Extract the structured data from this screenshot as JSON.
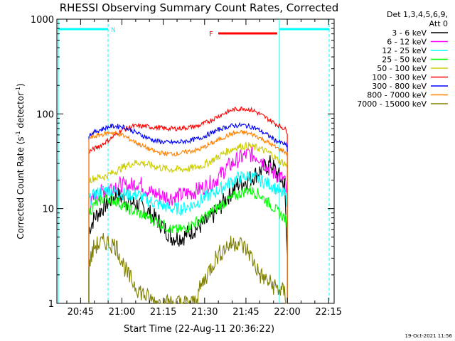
{
  "chart_data": {
    "type": "line",
    "title": "RHESSI Observing Summary Count Rates, Corrected",
    "xlabel": "Start Time (22-Aug-11 20:36:22)",
    "ylabel": "Corrected Count Rate (s",
    "ylabel_sup1": "-1",
    "ylabel_mid": " detector",
    "ylabel_sup2": "-1",
    "ylabel_end": ")",
    "yscale": "log",
    "ylim": [
      1,
      1000
    ],
    "xlim_minutes": [
      36.4,
      137
    ],
    "xticks": [
      {
        "label": "20:45",
        "minute": 45
      },
      {
        "label": "21:00",
        "minute": 60
      },
      {
        "label": "21:15",
        "minute": 75
      },
      {
        "label": "21:30",
        "minute": 90
      },
      {
        "label": "21:45",
        "minute": 105
      },
      {
        "label": "22:00",
        "minute": 120
      },
      {
        "label": "22:15",
        "minute": 135
      }
    ],
    "yticks": [
      {
        "label": "1",
        "value": 1
      },
      {
        "label": "10",
        "value": 10
      },
      {
        "label": "100",
        "value": 100
      },
      {
        "label": "1000",
        "value": 1000
      }
    ],
    "legend_header": [
      "Det 1,3,4,5,6,9,",
      "Att 0"
    ],
    "series": [
      {
        "name": "3 - 6 keV",
        "color": "#000000",
        "points": [
          [
            48,
            6
          ],
          [
            50,
            8
          ],
          [
            54,
            11
          ],
          [
            58,
            14
          ],
          [
            62,
            12
          ],
          [
            66,
            11
          ],
          [
            70,
            9
          ],
          [
            74,
            7
          ],
          [
            78,
            5
          ],
          [
            82,
            5
          ],
          [
            86,
            6
          ],
          [
            90,
            7
          ],
          [
            94,
            9
          ],
          [
            98,
            13
          ],
          [
            102,
            18
          ],
          [
            106,
            20
          ],
          [
            110,
            25
          ],
          [
            114,
            30
          ],
          [
            117,
            22
          ],
          [
            119,
            18
          ],
          [
            120,
            3
          ]
        ]
      },
      {
        "name": "6 - 12 keV",
        "color": "#ff00ff",
        "points": [
          [
            48,
            10
          ],
          [
            50,
            13
          ],
          [
            54,
            16
          ],
          [
            58,
            18
          ],
          [
            62,
            17
          ],
          [
            66,
            19
          ],
          [
            70,
            15
          ],
          [
            74,
            14
          ],
          [
            78,
            13
          ],
          [
            82,
            14
          ],
          [
            86,
            15
          ],
          [
            90,
            17
          ],
          [
            94,
            20
          ],
          [
            98,
            27
          ],
          [
            102,
            33
          ],
          [
            106,
            38
          ],
          [
            110,
            35
          ],
          [
            114,
            25
          ],
          [
            117,
            22
          ],
          [
            119,
            20
          ],
          [
            120,
            14
          ]
        ]
      },
      {
        "name": "12 - 25 keV",
        "color": "#00ffff",
        "points": [
          [
            48,
            12
          ],
          [
            50,
            14
          ],
          [
            54,
            16
          ],
          [
            58,
            15
          ],
          [
            62,
            14
          ],
          [
            66,
            14
          ],
          [
            70,
            12
          ],
          [
            74,
            11
          ],
          [
            78,
            10
          ],
          [
            82,
            10
          ],
          [
            86,
            11
          ],
          [
            90,
            13
          ],
          [
            94,
            15
          ],
          [
            98,
            18
          ],
          [
            102,
            21
          ],
          [
            106,
            22
          ],
          [
            110,
            20
          ],
          [
            114,
            18
          ],
          [
            117,
            15
          ],
          [
            119,
            14
          ],
          [
            120,
            12
          ]
        ]
      },
      {
        "name": "25 - 50 keV",
        "color": "#00ff00",
        "points": [
          [
            48,
            9
          ],
          [
            50,
            11
          ],
          [
            54,
            13
          ],
          [
            58,
            12
          ],
          [
            62,
            10
          ],
          [
            66,
            9
          ],
          [
            70,
            8
          ],
          [
            74,
            7
          ],
          [
            78,
            6
          ],
          [
            82,
            6
          ],
          [
            86,
            7
          ],
          [
            90,
            8
          ],
          [
            94,
            10
          ],
          [
            98,
            12
          ],
          [
            102,
            14
          ],
          [
            106,
            16
          ],
          [
            110,
            14
          ],
          [
            114,
            11
          ],
          [
            117,
            9
          ],
          [
            119,
            8
          ],
          [
            120,
            7
          ]
        ]
      },
      {
        "name": "50 - 100 keV",
        "color": "#cccc00",
        "points": [
          [
            48,
            20
          ],
          [
            50,
            21
          ],
          [
            54,
            22
          ],
          [
            58,
            25
          ],
          [
            62,
            29
          ],
          [
            66,
            31
          ],
          [
            70,
            29
          ],
          [
            74,
            27
          ],
          [
            78,
            26
          ],
          [
            82,
            26
          ],
          [
            86,
            27
          ],
          [
            90,
            29
          ],
          [
            94,
            34
          ],
          [
            98,
            40
          ],
          [
            102,
            45
          ],
          [
            106,
            46
          ],
          [
            110,
            43
          ],
          [
            114,
            38
          ],
          [
            117,
            32
          ],
          [
            119,
            30
          ],
          [
            120,
            28
          ]
        ]
      },
      {
        "name": "100 - 300 keV",
        "color": "#ff0000",
        "points": [
          [
            48,
            40
          ],
          [
            52,
            46
          ],
          [
            56,
            55
          ],
          [
            60,
            68
          ],
          [
            64,
            74
          ],
          [
            68,
            74
          ],
          [
            72,
            72
          ],
          [
            76,
            70
          ],
          [
            80,
            70
          ],
          [
            84,
            72
          ],
          [
            88,
            75
          ],
          [
            92,
            85
          ],
          [
            96,
            98
          ],
          [
            100,
            110
          ],
          [
            104,
            115
          ],
          [
            108,
            108
          ],
          [
            112,
            92
          ],
          [
            116,
            78
          ],
          [
            119,
            70
          ],
          [
            120,
            65
          ]
        ]
      },
      {
        "name": "300 - 800 keV",
        "color": "#0000ff",
        "points": [
          [
            48,
            60
          ],
          [
            52,
            68
          ],
          [
            56,
            74
          ],
          [
            60,
            74
          ],
          [
            64,
            66
          ],
          [
            68,
            58
          ],
          [
            72,
            52
          ],
          [
            76,
            50
          ],
          [
            80,
            50
          ],
          [
            84,
            52
          ],
          [
            88,
            55
          ],
          [
            92,
            62
          ],
          [
            96,
            70
          ],
          [
            100,
            75
          ],
          [
            104,
            76
          ],
          [
            108,
            72
          ],
          [
            112,
            62
          ],
          [
            116,
            52
          ],
          [
            119,
            48
          ],
          [
            120,
            45
          ]
        ]
      },
      {
        "name": "800 - 7000 keV",
        "color": "#ff8000",
        "points": [
          [
            48,
            55
          ],
          [
            52,
            60
          ],
          [
            56,
            64
          ],
          [
            60,
            60
          ],
          [
            64,
            52
          ],
          [
            68,
            45
          ],
          [
            72,
            40
          ],
          [
            76,
            38
          ],
          [
            80,
            38
          ],
          [
            84,
            40
          ],
          [
            88,
            42
          ],
          [
            92,
            48
          ],
          [
            96,
            55
          ],
          [
            100,
            62
          ],
          [
            104,
            64
          ],
          [
            108,
            60
          ],
          [
            112,
            52
          ],
          [
            116,
            44
          ],
          [
            119,
            40
          ],
          [
            120,
            38
          ]
        ]
      },
      {
        "name": "7000 - 15000 keV",
        "color": "#808000",
        "points": [
          [
            48,
            2.5
          ],
          [
            50,
            4
          ],
          [
            54,
            4.5
          ],
          [
            58,
            4
          ],
          [
            62,
            2
          ],
          [
            66,
            1.4
          ],
          [
            70,
            1.1
          ],
          [
            74,
            1
          ],
          [
            78,
            1
          ],
          [
            82,
            1
          ],
          [
            86,
            1
          ],
          [
            90,
            1.8
          ],
          [
            94,
            3
          ],
          [
            98,
            4
          ],
          [
            102,
            4.5
          ],
          [
            106,
            3.5
          ],
          [
            110,
            2
          ],
          [
            114,
            1.6
          ],
          [
            117,
            1.4
          ],
          [
            119,
            1.3
          ],
          [
            120,
            1
          ]
        ]
      }
    ],
    "annotations": [
      {
        "label": "N",
        "color": "#00ffff"
      },
      {
        "label": "F",
        "color": "#ff0000"
      }
    ],
    "footer_date": "19-Oct-2021 11:56"
  }
}
